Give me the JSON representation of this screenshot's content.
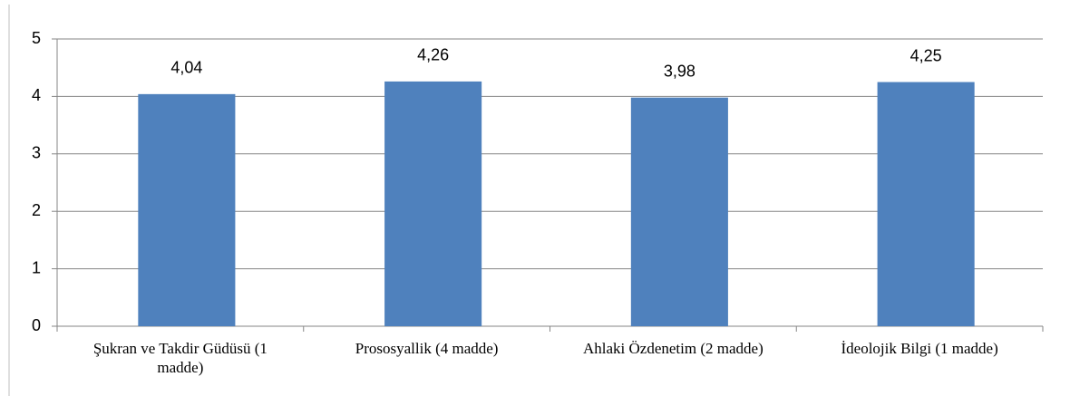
{
  "chart_data": {
    "type": "bar",
    "categories": [
      "Şukran ve Takdir Güdüsü (1 madde)",
      "Prososyallik (4 madde)",
      "Ahlaki Özdenetim (2 madde)",
      "İdeolojik Bilgi (1 madde)"
    ],
    "values": [
      4.04,
      4.26,
      3.98,
      4.25
    ],
    "value_labels": [
      "4,04",
      "4,26",
      "3,98",
      "4,25"
    ],
    "color": "#4f81bd",
    "ylim": [
      0,
      5
    ],
    "yticks": [
      0,
      1,
      2,
      3,
      4,
      5
    ],
    "grid": true
  }
}
